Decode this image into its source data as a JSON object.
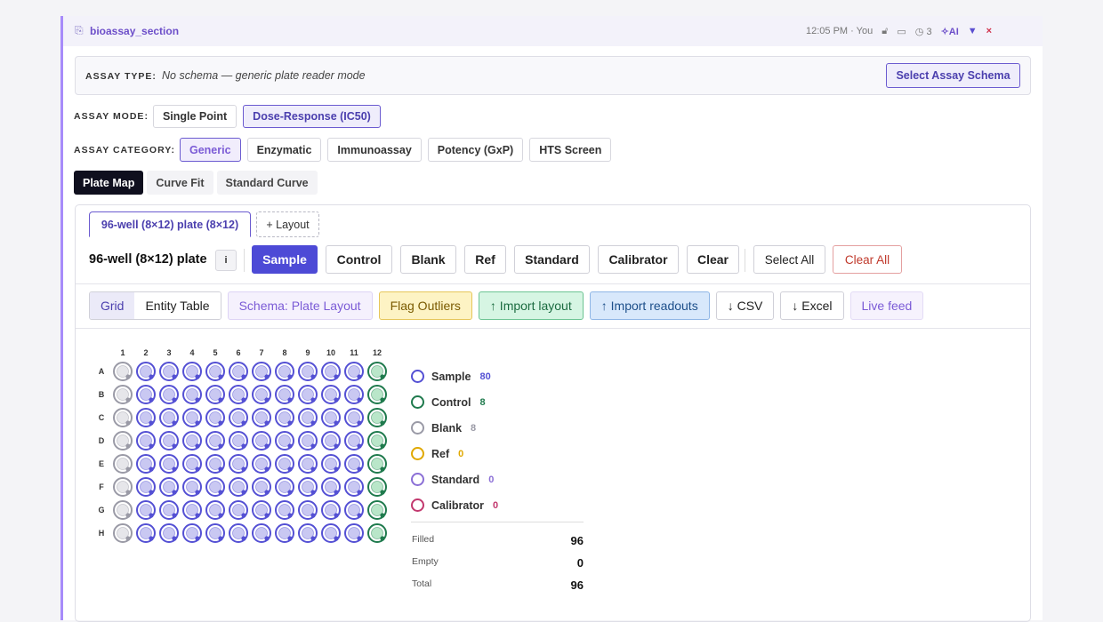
{
  "header": {
    "title": "bioassay_section",
    "timestamp": "12:05 PM · You",
    "history_count": "3",
    "ai": "AI",
    "collapse": "▼",
    "close": "×"
  },
  "assay_type": {
    "label": "ASSAY TYPE:",
    "value": "No schema — generic plate reader mode",
    "button": "Select Assay Schema"
  },
  "assay_mode": {
    "label": "ASSAY MODE:",
    "options": [
      "Single Point",
      "Dose-Response (IC50)"
    ],
    "selected": 1
  },
  "assay_category": {
    "label": "ASSAY CATEGORY:",
    "options": [
      "Generic",
      "Enzymatic",
      "Immunoassay",
      "Potency (GxP)",
      "HTS Screen"
    ],
    "selected": 0
  },
  "view_tabs": {
    "options": [
      "Plate Map",
      "Curve Fit",
      "Standard Curve"
    ],
    "selected": 0
  },
  "layout_tabs": [
    "96-well (8×12) plate (8×12)",
    "+ Layout"
  ],
  "plate_toolbar": {
    "title": "96-well (8×12) plate",
    "info": "i",
    "well_types": [
      "Sample",
      "Control",
      "Blank",
      "Ref",
      "Standard",
      "Calibrator",
      "Clear"
    ],
    "selected": 0,
    "select_all": "Select All",
    "clear_all": "Clear All"
  },
  "view_toolbar": {
    "modes": [
      "Grid",
      "Entity Table"
    ],
    "selected": 0,
    "actions": [
      "Schema: Plate Layout",
      "Flag Outliers",
      "↑ Import layout",
      "↑ Import readouts",
      "↓ CSV",
      "↓ Excel",
      "Live feed"
    ]
  },
  "plate": {
    "columns": [
      "1",
      "2",
      "3",
      "4",
      "5",
      "6",
      "7",
      "8",
      "9",
      "10",
      "11",
      "12"
    ],
    "rows": [
      "A",
      "B",
      "C",
      "D",
      "E",
      "F",
      "G",
      "H"
    ]
  },
  "legend": [
    {
      "name": "Sample",
      "count": 80,
      "color": "#5450d4"
    },
    {
      "name": "Control",
      "count": 8,
      "color": "#1f7a4d"
    },
    {
      "name": "Blank",
      "count": 8,
      "color": "#9a9aa6"
    },
    {
      "name": "Ref",
      "count": 0,
      "color": "#e0a800"
    },
    {
      "name": "Standard",
      "count": 0,
      "color": "#8b6fd6"
    },
    {
      "name": "Calibrator",
      "count": 0,
      "color": "#c2386e"
    }
  ],
  "summary": [
    {
      "label": "Filled",
      "value": 96
    },
    {
      "label": "Empty",
      "value": 0
    },
    {
      "label": "Total",
      "value": 96
    }
  ]
}
